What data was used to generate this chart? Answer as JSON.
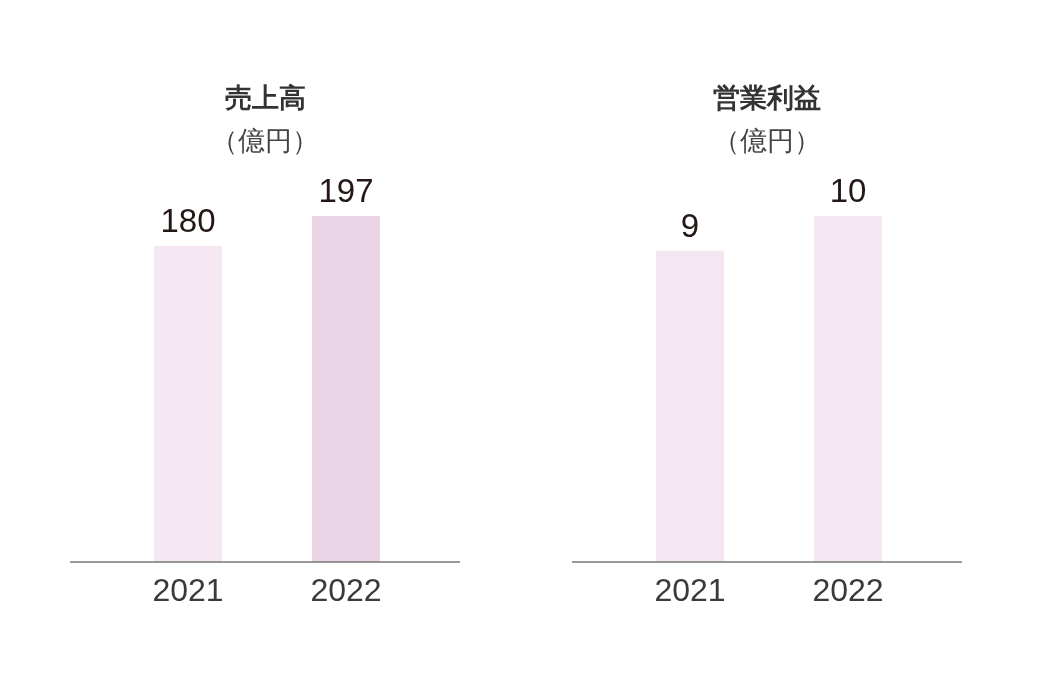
{
  "chart_data": [
    {
      "type": "bar",
      "title": "売上高",
      "subtitle": "（億円）",
      "categories": [
        "2021",
        "2022"
      ],
      "values": [
        180,
        197
      ],
      "colors": [
        "#f4e7f1",
        "#ecd4e7"
      ],
      "data_labels": true
    },
    {
      "type": "bar",
      "title": "営業利益",
      "subtitle": "（億円）",
      "categories": [
        "2021",
        "2022"
      ],
      "values": [
        9,
        10
      ],
      "colors": [
        "#f4e7f1",
        "#f4e7f1"
      ],
      "data_labels": true
    }
  ]
}
